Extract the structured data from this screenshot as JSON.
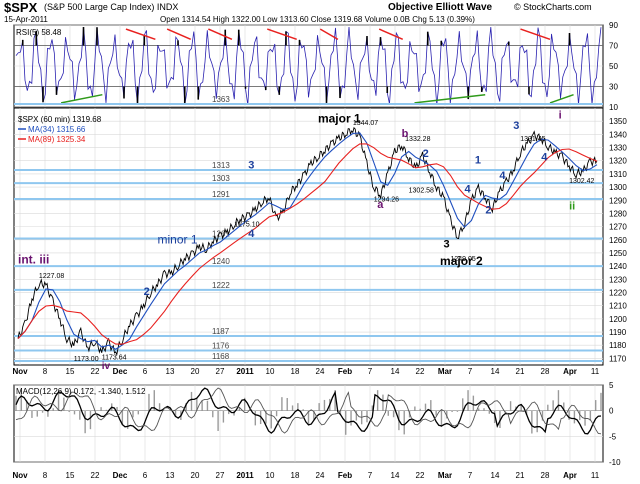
{
  "header": {
    "symbol": "$SPX",
    "name": "(S&P 500 Large Cap Index) INDX",
    "date": "15-Apr-2011",
    "watermark": "Objective Elliott Wave",
    "stockcharts": "© StockCharts.com",
    "quote": "Open 1314.54  High 1322.00  Low 1313.60  Close 1319.68  Volume 0.0B  Chg 5.13 (0.39%)"
  },
  "colors": {
    "price": "#000000",
    "ma34": "#1f4fbf",
    "ma89": "#e8211f",
    "level": "#8fc7ef",
    "rsi": "#2a22b0",
    "wave_blue": "#1c3f9c",
    "wave_purple": "#6a126f",
    "wave_green": "#2f9a1a",
    "trend_red": "#e8211f",
    "trend_green": "#2f9a1a",
    "macd_hist": "#9a9a9a",
    "grid": "#d9d9d9"
  },
  "chart_data": [
    {
      "panel": "rsi",
      "type": "line",
      "title": "RSI(5) 58.48",
      "ylim": [
        10,
        90
      ],
      "yticks": [
        10,
        30,
        50,
        70,
        90
      ],
      "levels": [
        30,
        70
      ],
      "last": 58.48
    },
    {
      "panel": "price",
      "type": "line",
      "title": "$SPX (60 min) 1319.68",
      "ylim": [
        1165,
        1360
      ],
      "yticks": [
        1170,
        1180,
        1190,
        1200,
        1210,
        1220,
        1230,
        1240,
        1250,
        1260,
        1270,
        1280,
        1290,
        1300,
        1310,
        1320,
        1330,
        1340,
        1350
      ],
      "x_axis_labels": [
        "Nov",
        "8",
        "15",
        "22",
        "Dec",
        "6",
        "13",
        "20",
        "27",
        "2011",
        "10",
        "18",
        "24",
        "Feb",
        "7",
        "14",
        "22",
        "Mar",
        "7",
        "14",
        "21",
        "28",
        "Apr",
        "11"
      ],
      "series": [
        {
          "name": "$SPX (60 min) 1319.68",
          "last": 1319.68,
          "points": [
            [
              0,
              1185
            ],
            [
              2,
              1196
            ],
            [
              4,
              1215
            ],
            [
              6,
              1227
            ],
            [
              8,
              1226
            ],
            [
              10,
              1213
            ],
            [
              12,
              1200
            ],
            [
              14,
              1185
            ],
            [
              16,
              1180
            ],
            [
              18,
              1190
            ],
            [
              20,
              1178
            ],
            [
              22,
              1183
            ],
            [
              24,
              1175
            ],
            [
              26,
              1182
            ],
            [
              28,
              1174
            ],
            [
              30,
              1185
            ],
            [
              32,
              1195
            ],
            [
              34,
              1202
            ],
            [
              36,
              1210
            ],
            [
              38,
              1220
            ],
            [
              40,
              1226
            ],
            [
              42,
              1234
            ],
            [
              44,
              1235
            ],
            [
              46,
              1241
            ],
            [
              48,
              1246
            ],
            [
              50,
              1249
            ],
            [
              52,
              1255
            ],
            [
              54,
              1253
            ],
            [
              56,
              1259
            ],
            [
              58,
              1263
            ],
            [
              60,
              1266
            ],
            [
              62,
              1272
            ],
            [
              64,
              1276
            ],
            [
              66,
              1278
            ],
            [
              68,
              1283
            ],
            [
              70,
              1289
            ],
            [
              72,
              1292
            ],
            [
              74,
              1276
            ],
            [
              76,
              1281
            ],
            [
              78,
              1296
            ],
            [
              80,
              1302
            ],
            [
              82,
              1309
            ],
            [
              84,
              1318
            ],
            [
              86,
              1323
            ],
            [
              88,
              1328
            ],
            [
              90,
              1333
            ],
            [
              92,
              1337
            ],
            [
              94,
              1341
            ],
            [
              96,
              1344
            ],
            [
              98,
              1338
            ],
            [
              100,
              1318
            ],
            [
              102,
              1300
            ],
            [
              104,
              1294
            ],
            [
              106,
              1310
            ],
            [
              108,
              1327
            ],
            [
              110,
              1332
            ],
            [
              112,
              1322
            ],
            [
              114,
              1314
            ],
            [
              116,
              1324
            ],
            [
              118,
              1312
            ],
            [
              120,
              1300
            ],
            [
              122,
              1292
            ],
            [
              124,
              1275
            ],
            [
              126,
              1262
            ],
            [
              128,
              1272
            ],
            [
              130,
              1290
            ],
            [
              132,
              1299
            ],
            [
              134,
              1292
            ],
            [
              136,
              1284
            ],
            [
              138,
              1296
            ],
            [
              140,
              1304
            ],
            [
              142,
              1313
            ],
            [
              144,
              1326
            ],
            [
              146,
              1333
            ],
            [
              148,
              1339
            ],
            [
              150,
              1337
            ],
            [
              152,
              1331
            ],
            [
              154,
              1326
            ],
            [
              156,
              1323
            ],
            [
              158,
              1316
            ],
            [
              160,
              1310
            ],
            [
              162,
              1312
            ],
            [
              164,
              1319
            ],
            [
              166,
              1320
            ]
          ]
        },
        {
          "name": "MA(34) 1315.66",
          "last": 1315.66
        },
        {
          "name": "MA(89) 1325.34",
          "last": 1325.34
        }
      ],
      "horizontal_levels": [
        1363,
        1313,
        1303,
        1291,
        1261,
        1240,
        1222,
        1187,
        1176,
        1168
      ],
      "price_annotations": [
        "1344.07",
        "1332.28",
        "1302.58",
        "1294.26",
        "1275.10",
        "1249.05",
        "1227.08",
        "1173.00",
        "1173.64",
        "1331.45",
        "1302.42"
      ],
      "wave_labels": [
        "major 1",
        "major 2",
        "minor 1",
        "int. iii",
        "iv",
        "a",
        "b",
        "1",
        "2",
        "3",
        "4",
        "i",
        "ii"
      ]
    },
    {
      "panel": "macd",
      "type": "line",
      "title": "MACD(12,26,9) 0.172, -1.340, 1.512",
      "ylim": [
        -10,
        5
      ],
      "yticks": [
        -10,
        -5,
        0,
        5
      ],
      "series": [
        {
          "name": "MACD(12,26,9) 0.172"
        },
        {
          "name": "signal -1.340"
        },
        {
          "name": "histogram 1.512"
        }
      ]
    }
  ]
}
